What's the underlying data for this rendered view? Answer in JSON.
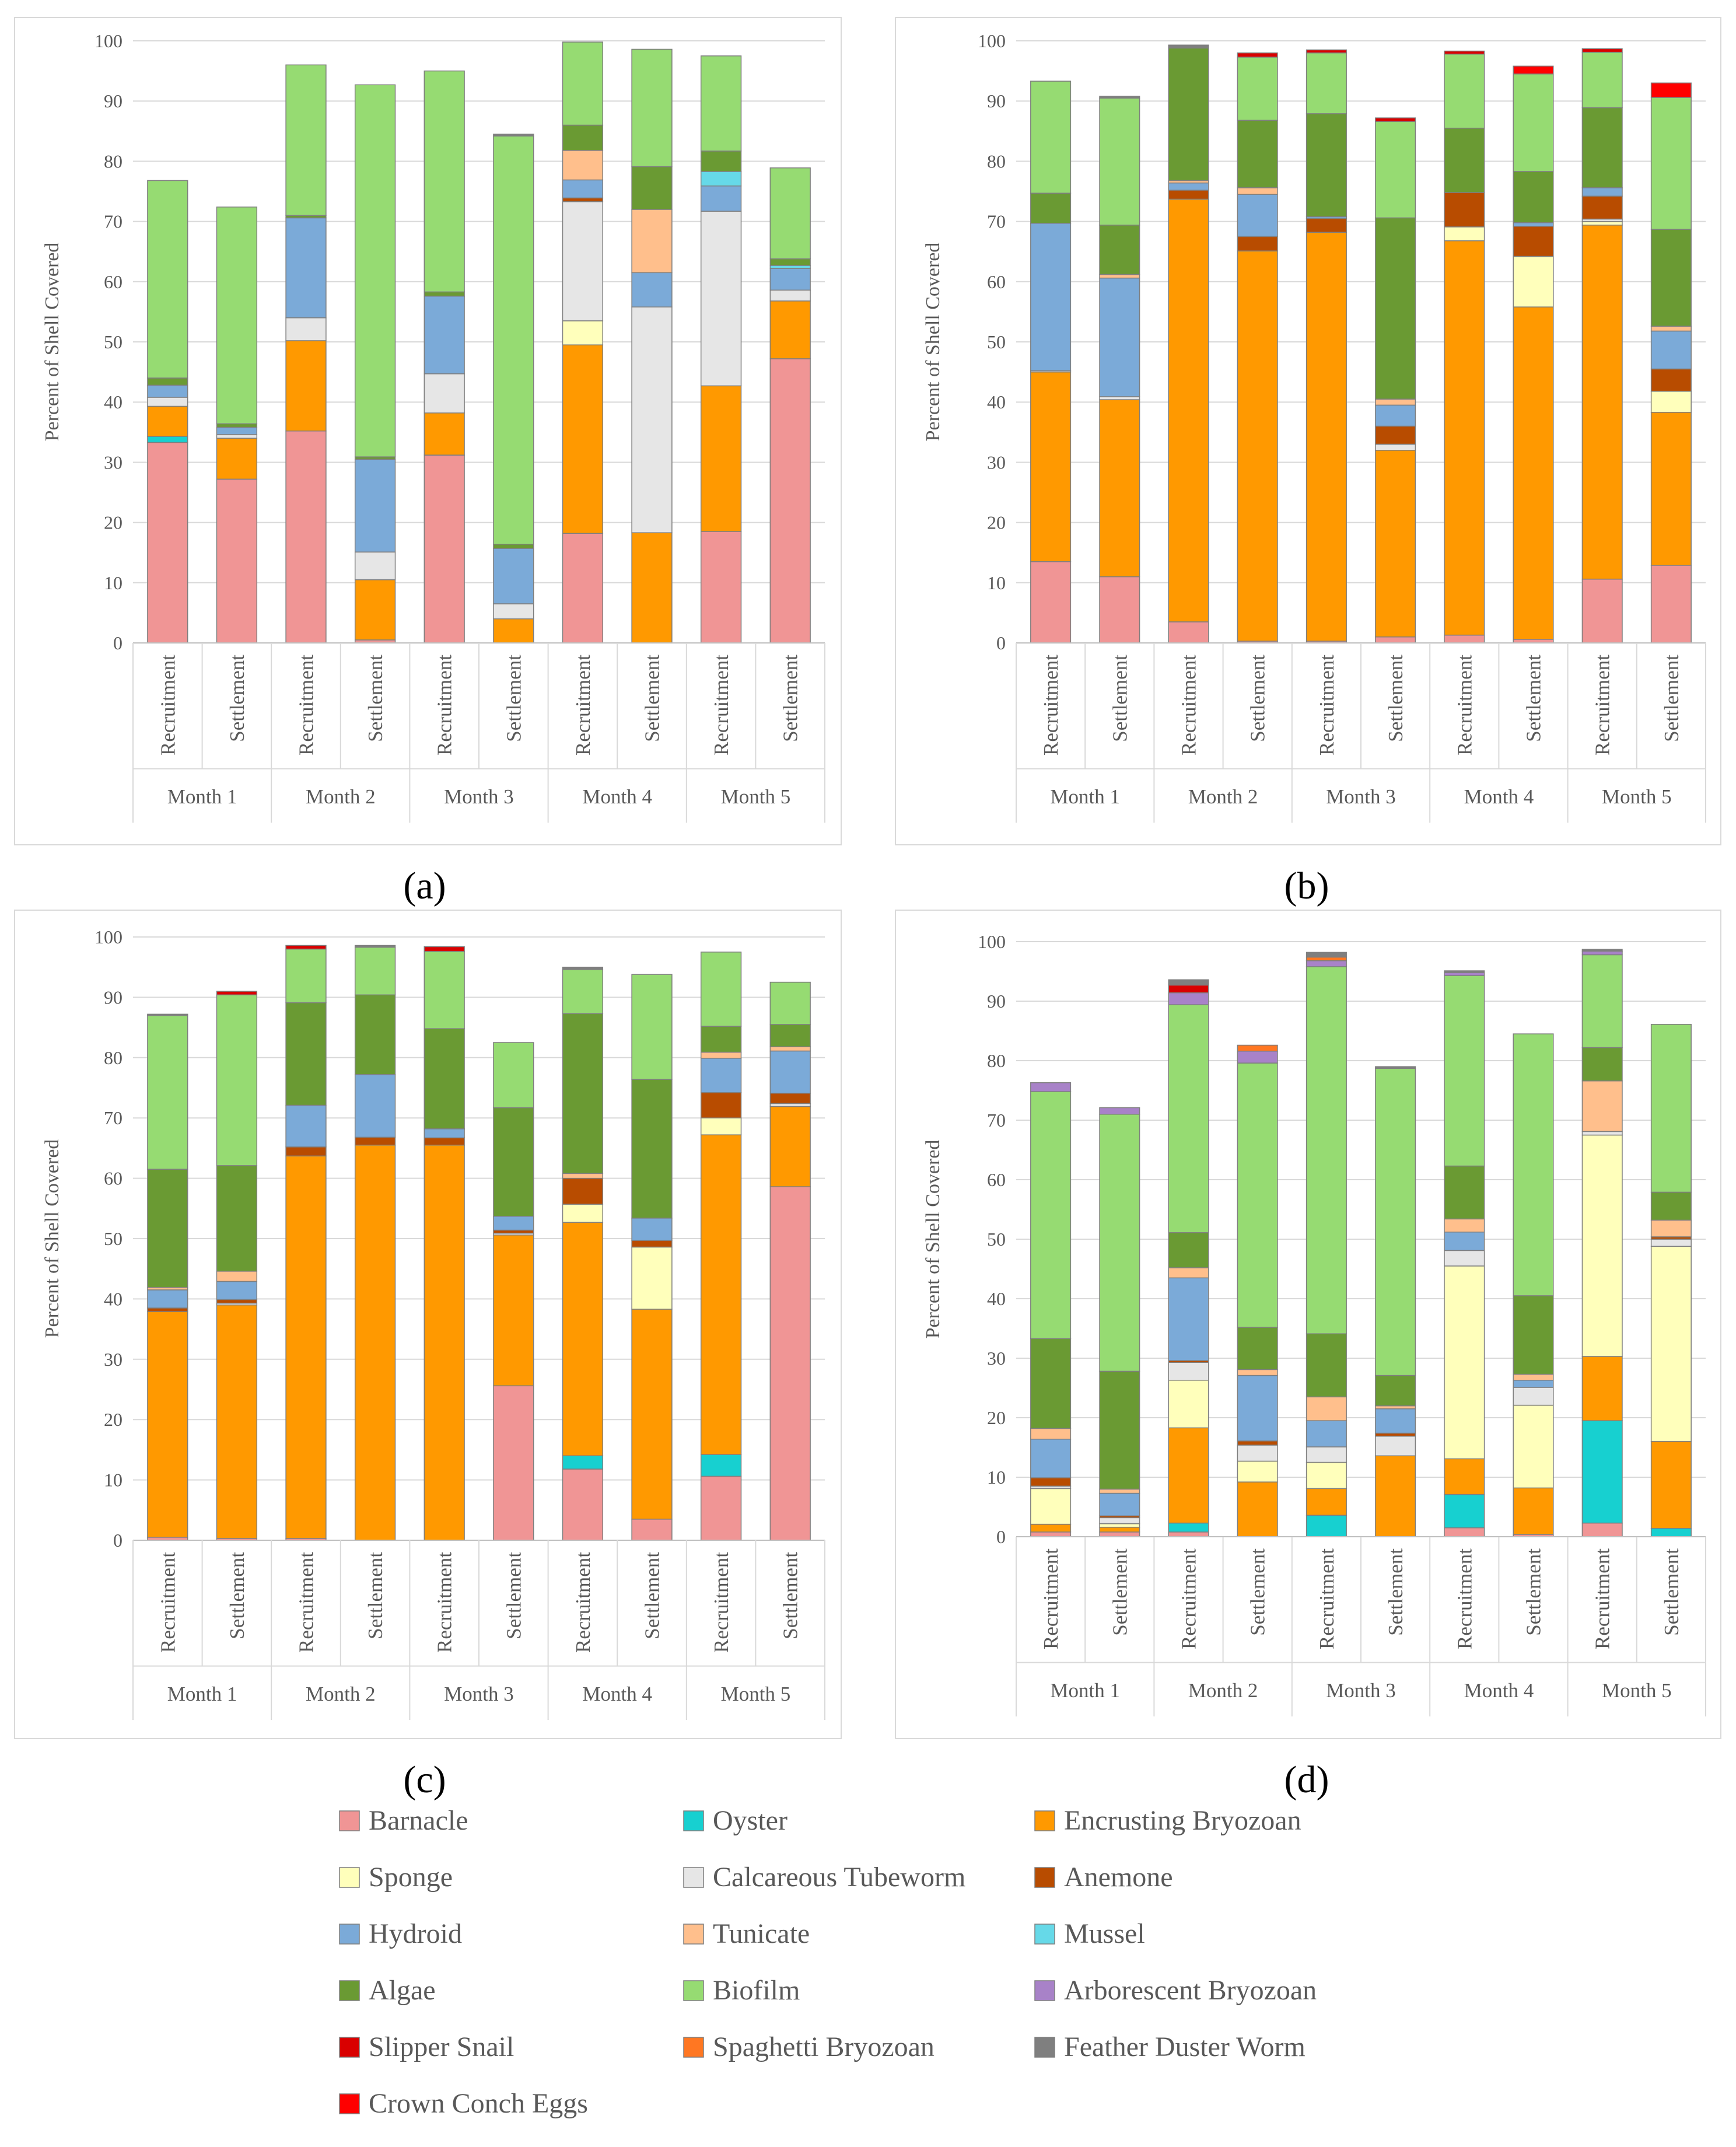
{
  "figure": {
    "panels": [
      "(a)",
      "(b)",
      "(c)",
      "(d)"
    ]
  },
  "colors": {
    "Barnacle": "#F09595",
    "Oyster": "#17D0D0",
    "Encrusting Bryozoan": "#FF9900",
    "Sponge": "#FFFFBB",
    "Calcareous Tubeworm": "#E6E6E6",
    "Anemone": "#B84C00",
    "Hydroid": "#7BAAD8",
    "Tunicate": "#FFBF8C",
    "Mussel": "#66D9E8",
    "Algae": "#6A9A33",
    "Biofilm": "#96DB72",
    "Arborescent Bryozoan": "#A882C8",
    "Slipper Snail": "#D90000",
    "Spaghetti Bryozoan": "#FF7722",
    "Feather Duster Worm": "#7F7F7F",
    "Crown Conch Eggs": "#FF0000"
  },
  "chart_data": [
    {
      "type": "bar",
      "stacked": true,
      "panel": "(a)",
      "ylabel": "Percent of  Shell Covered",
      "ylim": [
        0,
        100
      ],
      "yticks": [
        "0",
        "10",
        "20",
        "30",
        "40",
        "50",
        "60",
        "70",
        "80",
        "90",
        "100"
      ],
      "categories": [
        "Recruitment",
        "Settlement",
        "Recruitment",
        "Settlement",
        "Recruitment",
        "Settlement",
        "Recruitment",
        "Settlement",
        "Recruitment",
        "Settlement"
      ],
      "groups": [
        "Month 1",
        "Month 2",
        "Month 3",
        "Month 4",
        "Month 5"
      ],
      "series": [
        {
          "name": "Barnacle",
          "values": [
            33.3,
            27.2,
            35.2,
            0.5,
            31.2,
            0,
            18.2,
            0,
            18.5,
            47.2
          ]
        },
        {
          "name": "Oyster",
          "values": [
            1.0,
            0,
            0,
            0,
            0,
            0,
            0,
            0,
            0,
            0
          ]
        },
        {
          "name": "Encrusting Bryozoan",
          "values": [
            5.0,
            6.8,
            15.0,
            10.0,
            7.0,
            4.0,
            31.3,
            18.3,
            24.2,
            9.6
          ]
        },
        {
          "name": "Sponge",
          "values": [
            0,
            0,
            0,
            0,
            0,
            0,
            4.0,
            0,
            0,
            0
          ]
        },
        {
          "name": "Calcareous Tubeworm",
          "values": [
            1.5,
            0.6,
            3.8,
            4.6,
            6.5,
            2.5,
            19.8,
            37.5,
            29.0,
            1.8
          ]
        },
        {
          "name": "Anemone",
          "values": [
            0,
            0,
            0,
            0,
            0,
            0,
            0.6,
            0,
            0,
            0
          ]
        },
        {
          "name": "Hydroid",
          "values": [
            2.0,
            1.2,
            16.6,
            15.4,
            12.9,
            9.2,
            3.0,
            5.7,
            4.2,
            3.6
          ]
        },
        {
          "name": "Tunicate",
          "values": [
            0,
            0,
            0,
            0,
            0,
            0,
            4.9,
            10.5,
            0,
            0
          ]
        },
        {
          "name": "Mussel",
          "values": [
            0,
            0,
            0,
            0,
            0,
            0,
            0,
            0,
            2.4,
            0.5
          ]
        },
        {
          "name": "Algae",
          "values": [
            1.2,
            0.6,
            0.4,
            0.4,
            0.7,
            0.7,
            4.2,
            7.1,
            3.4,
            1.1
          ]
        },
        {
          "name": "Biofilm",
          "values": [
            32.8,
            36.0,
            25.0,
            61.8,
            36.7,
            67.8,
            13.8,
            19.5,
            15.8,
            15.1
          ]
        },
        {
          "name": "Arborescent Bryozoan",
          "values": [
            0,
            0,
            0,
            0,
            0,
            0,
            0,
            0,
            0,
            0
          ]
        },
        {
          "name": "Slipper Snail",
          "values": [
            0,
            0,
            0,
            0,
            0,
            0,
            0,
            0,
            0,
            0
          ]
        },
        {
          "name": "Spaghetti Bryozoan",
          "values": [
            0,
            0,
            0,
            0,
            0,
            0,
            0,
            0,
            0,
            0
          ]
        },
        {
          "name": "Feather Duster Worm",
          "values": [
            0,
            0,
            0,
            0,
            0,
            0.3,
            0,
            0,
            0,
            0
          ]
        },
        {
          "name": "Crown Conch Eggs",
          "values": [
            0,
            0,
            0,
            0,
            0,
            0,
            0,
            0,
            0,
            0
          ]
        }
      ]
    },
    {
      "type": "bar",
      "stacked": true,
      "panel": "(b)",
      "ylabel": "Percent of  Shell Covered",
      "ylim": [
        0,
        100
      ],
      "yticks": [
        "0",
        "10",
        "20",
        "30",
        "40",
        "50",
        "60",
        "70",
        "80",
        "90",
        "100"
      ],
      "categories": [
        "Recruitment",
        "Settlement",
        "Recruitment",
        "Settlement",
        "Recruitment",
        "Settlement",
        "Recruitment",
        "Settlement",
        "Recruitment",
        "Settlement"
      ],
      "groups": [
        "Month 1",
        "Month 2",
        "Month 3",
        "Month 4",
        "Month 5"
      ],
      "series": [
        {
          "name": "Barnacle",
          "values": [
            13.5,
            11.0,
            3.5,
            0.3,
            0.3,
            1.0,
            1.3,
            0.6,
            10.6,
            12.9
          ]
        },
        {
          "name": "Oyster",
          "values": [
            0,
            0,
            0,
            0,
            0,
            0,
            0,
            0,
            0,
            0
          ]
        },
        {
          "name": "Encrusting Bryozoan",
          "values": [
            31.5,
            29.4,
            70.2,
            64.8,
            67.9,
            31.0,
            65.5,
            55.2,
            58.8,
            25.4
          ]
        },
        {
          "name": "Sponge",
          "values": [
            0,
            0,
            0,
            0,
            0,
            0,
            2.3,
            8.4,
            0.6,
            3.5
          ]
        },
        {
          "name": "Calcareous Tubeworm",
          "values": [
            0.2,
            0.5,
            0,
            0,
            0,
            1.0,
            0,
            0,
            0.4,
            0
          ]
        },
        {
          "name": "Anemone",
          "values": [
            0,
            0,
            1.5,
            2.4,
            2.3,
            3.0,
            5.7,
            5.0,
            3.8,
            3.7
          ]
        },
        {
          "name": "Hydroid",
          "values": [
            24.5,
            19.7,
            1.2,
            7.0,
            0.3,
            3.5,
            0,
            0.6,
            1.4,
            6.3
          ]
        },
        {
          "name": "Tunicate",
          "values": [
            0,
            0.6,
            0.4,
            1.1,
            0,
            1.0,
            0,
            0,
            0,
            0.8
          ]
        },
        {
          "name": "Mussel",
          "values": [
            0,
            0,
            0,
            0,
            0,
            0,
            0,
            0,
            0,
            0
          ]
        },
        {
          "name": "Algae",
          "values": [
            5.0,
            8.2,
            22.0,
            11.2,
            17.1,
            30.1,
            10.7,
            8.5,
            13.3,
            16.1
          ]
        },
        {
          "name": "Biofilm",
          "values": [
            18.6,
            21.1,
            0,
            10.5,
            10.1,
            16.0,
            12.3,
            16.2,
            9.2,
            21.9
          ]
        },
        {
          "name": "Arborescent Bryozoan",
          "values": [
            0,
            0,
            0,
            0,
            0,
            0,
            0,
            0,
            0,
            0
          ]
        },
        {
          "name": "Slipper Snail",
          "values": [
            0,
            0,
            0,
            0.7,
            0.5,
            0.6,
            0.5,
            0,
            0.6,
            0
          ]
        },
        {
          "name": "Spaghetti Bryozoan",
          "values": [
            0,
            0,
            0,
            0,
            0,
            0,
            0,
            0,
            0,
            0
          ]
        },
        {
          "name": "Feather Duster Worm",
          "values": [
            0,
            0.3,
            0.5,
            0,
            0,
            0,
            0,
            0,
            0,
            0
          ]
        },
        {
          "name": "Crown Conch Eggs",
          "values": [
            0,
            0,
            0,
            0,
            0,
            0,
            0,
            1.3,
            0,
            2.4
          ]
        }
      ]
    },
    {
      "type": "bar",
      "stacked": true,
      "panel": "(c)",
      "ylabel": "Percent of  Shell Covered",
      "ylim": [
        0,
        100
      ],
      "yticks": [
        "0",
        "10",
        "20",
        "30",
        "40",
        "50",
        "60",
        "70",
        "80",
        "90",
        "100"
      ],
      "categories": [
        "Recruitment",
        "Settlement",
        "Recruitment",
        "Settlement",
        "Recruitment",
        "Settlement",
        "Recruitment",
        "Settlement",
        "Recruitment",
        "Settlement"
      ],
      "groups": [
        "Month 1",
        "Month 2",
        "Month 3",
        "Month 4",
        "Month 5"
      ],
      "series": [
        {
          "name": "Barnacle",
          "values": [
            0.5,
            0.3,
            0.3,
            0,
            0,
            25.6,
            11.8,
            3.5,
            10.6,
            58.6
          ]
        },
        {
          "name": "Oyster",
          "values": [
            0,
            0,
            0,
            0,
            0,
            0,
            2.2,
            0,
            3.6,
            0
          ]
        },
        {
          "name": "Encrusting Bryozoan",
          "values": [
            37.4,
            38.7,
            63.4,
            65.5,
            65.5,
            25.0,
            38.7,
            34.8,
            53.0,
            13.3
          ]
        },
        {
          "name": "Sponge",
          "values": [
            0,
            0,
            0,
            0,
            0,
            0,
            3.0,
            10.3,
            2.8,
            0
          ]
        },
        {
          "name": "Calcareous Tubeworm",
          "values": [
            0,
            0.3,
            0,
            0,
            0,
            0.3,
            0,
            0,
            0,
            0.5
          ]
        },
        {
          "name": "Anemone",
          "values": [
            0.6,
            0.6,
            1.5,
            1.3,
            1.2,
            0.5,
            4.3,
            1.1,
            4.2,
            1.7
          ]
        },
        {
          "name": "Hydroid",
          "values": [
            3.0,
            3.0,
            6.9,
            10.4,
            1.5,
            2.3,
            0,
            3.7,
            5.7,
            7.0
          ]
        },
        {
          "name": "Tunicate",
          "values": [
            0.4,
            1.7,
            0,
            0,
            0,
            0,
            0.8,
            0,
            1.0,
            0.7
          ]
        },
        {
          "name": "Mussel",
          "values": [
            0,
            0,
            0,
            0,
            0,
            0,
            0,
            0,
            0,
            0
          ]
        },
        {
          "name": "Algae",
          "values": [
            19.6,
            17.5,
            17.0,
            13.2,
            16.6,
            18.0,
            26.5,
            23.0,
            4.3,
            3.7
          ]
        },
        {
          "name": "Biofilm",
          "values": [
            25.5,
            28.3,
            8.9,
            7.9,
            12.8,
            10.8,
            7.3,
            17.4,
            12.3,
            7.0
          ]
        },
        {
          "name": "Arborescent Bryozoan",
          "values": [
            0,
            0,
            0,
            0,
            0,
            0,
            0,
            0,
            0,
            0
          ]
        },
        {
          "name": "Slipper Snail",
          "values": [
            0,
            0.6,
            0.6,
            0,
            0.8,
            0,
            0,
            0,
            0,
            0
          ]
        },
        {
          "name": "Spaghetti Bryozoan",
          "values": [
            0,
            0,
            0,
            0,
            0,
            0,
            0,
            0,
            0,
            0
          ]
        },
        {
          "name": "Feather Duster Worm",
          "values": [
            0.2,
            0,
            0,
            0.3,
            0,
            0,
            0.4,
            0,
            0,
            0
          ]
        },
        {
          "name": "Crown Conch Eggs",
          "values": [
            0,
            0,
            0,
            0,
            0,
            0,
            0,
            0,
            0,
            0
          ]
        }
      ]
    },
    {
      "type": "bar",
      "stacked": true,
      "panel": "(d)",
      "ylabel": "Percent of  Shell Covered",
      "ylim": [
        0,
        100
      ],
      "yticks": [
        "0",
        "10",
        "20",
        "30",
        "40",
        "50",
        "60",
        "70",
        "80",
        "90",
        "100"
      ],
      "categories": [
        "Recruitment",
        "Settlement",
        "Recruitment",
        "Settlement",
        "Recruitment",
        "Settlement",
        "Recruitment",
        "Settlement",
        "Recruitment",
        "Settlement"
      ],
      "groups": [
        "Month 1",
        "Month 2",
        "Month 3",
        "Month 4",
        "Month 5"
      ],
      "series": [
        {
          "name": "Barnacle",
          "values": [
            0.8,
            0.8,
            0.8,
            0,
            0,
            0,
            1.5,
            0.4,
            2.3,
            0
          ]
        },
        {
          "name": "Oyster",
          "values": [
            0,
            0,
            1.5,
            0,
            3.6,
            0,
            5.6,
            0,
            17.2,
            1.4
          ]
        },
        {
          "name": "Encrusting Bryozoan",
          "values": [
            1.3,
            0.8,
            16.0,
            9.2,
            4.5,
            13.6,
            6.0,
            7.8,
            10.8,
            14.6
          ]
        },
        {
          "name": "Sponge",
          "values": [
            6.0,
            0.6,
            8.0,
            3.5,
            4.4,
            0,
            32.4,
            13.9,
            37.2,
            32.8
          ]
        },
        {
          "name": "Calcareous Tubeworm",
          "values": [
            0.4,
            1.0,
            3.0,
            2.7,
            2.6,
            3.3,
            2.6,
            3.0,
            0.6,
            1.2
          ]
        },
        {
          "name": "Anemone",
          "values": [
            1.4,
            0.3,
            0.3,
            0.7,
            0,
            0.5,
            0,
            0,
            0,
            0.4
          ]
        },
        {
          "name": "Hydroid",
          "values": [
            6.5,
            3.8,
            13.9,
            11.0,
            4.4,
            4.1,
            3.1,
            1.2,
            0,
            0
          ]
        },
        {
          "name": "Tunicate",
          "values": [
            1.8,
            0.7,
            1.7,
            1.0,
            4.0,
            0.5,
            2.2,
            1.0,
            8.5,
            2.8
          ]
        },
        {
          "name": "Mussel",
          "values": [
            0,
            0,
            0,
            0,
            0,
            0,
            0,
            0,
            0,
            0
          ]
        },
        {
          "name": "Algae",
          "values": [
            15.1,
            19.8,
            5.9,
            7.1,
            10.6,
            5.1,
            8.9,
            13.2,
            5.6,
            4.7
          ]
        },
        {
          "name": "Biofilm",
          "values": [
            41.5,
            43.2,
            38.3,
            44.4,
            61.7,
            51.6,
            32.0,
            44.0,
            15.6,
            28.2
          ]
        },
        {
          "name": "Arborescent Bryozoan",
          "values": [
            1.5,
            1.1,
            2.0,
            2.0,
            1.0,
            0,
            0.5,
            0,
            0.6,
            0
          ]
        },
        {
          "name": "Slipper Snail",
          "values": [
            0,
            0,
            1.3,
            0,
            0,
            0,
            0,
            0,
            0,
            0
          ]
        },
        {
          "name": "Spaghetti Bryozoan",
          "values": [
            0,
            0,
            0,
            1.0,
            0.6,
            0,
            0,
            0,
            0,
            0
          ]
        },
        {
          "name": "Feather Duster Worm",
          "values": [
            0,
            0,
            0.9,
            0,
            0.8,
            0.3,
            0.3,
            0,
            0.3,
            0
          ]
        },
        {
          "name": "Crown Conch Eggs",
          "values": [
            0,
            0,
            0,
            0,
            0,
            0,
            0,
            0,
            0,
            0
          ]
        }
      ]
    }
  ],
  "legend": {
    "items": [
      "Barnacle",
      "Oyster",
      "Encrusting Bryozoan",
      "Sponge",
      "Calcareous Tubeworm",
      "Anemone",
      "Hydroid",
      "Tunicate",
      "Mussel",
      "Algae",
      "Biofilm",
      "Arborescent Bryozoan",
      "Slipper Snail",
      "Spaghetti Bryozoan",
      "Feather Duster Worm",
      "Crown Conch Eggs"
    ]
  }
}
